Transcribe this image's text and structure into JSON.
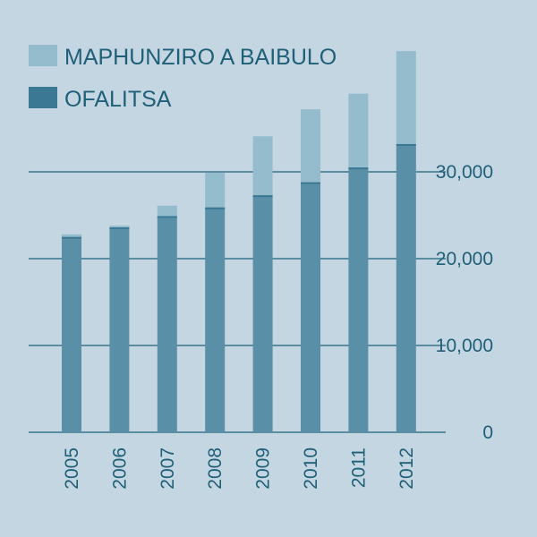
{
  "chart_data": {
    "type": "bar",
    "stacked": true,
    "categories": [
      "2005",
      "2006",
      "2007",
      "2008",
      "2009",
      "2010",
      "2011",
      "2012"
    ],
    "series": [
      {
        "name": "OFALITSA",
        "values": [
          22500,
          23600,
          24900,
          25900,
          27300,
          28800,
          30500,
          33200
        ]
      },
      {
        "name": "MAPHUNZIRO A BAIBULO",
        "values": [
          300,
          200,
          1200,
          4000,
          6800,
          8400,
          8500,
          10700
        ]
      }
    ],
    "y_ticks": [
      "0",
      "10,000",
      "20,000",
      "30,000"
    ],
    "ylim": [
      0,
      45000
    ],
    "grid": true,
    "y_axis_position": "right",
    "legend_position": "top-left",
    "colors": {
      "background": "#c3d6e1",
      "OFALITSA": "#5a8fa8",
      "MAPHUNZIRO A BAIBULO": "#95bccd",
      "gridline": "#1f5f78",
      "text": "#1f5f78",
      "legend_OFALITSA": "#3b7893"
    }
  }
}
